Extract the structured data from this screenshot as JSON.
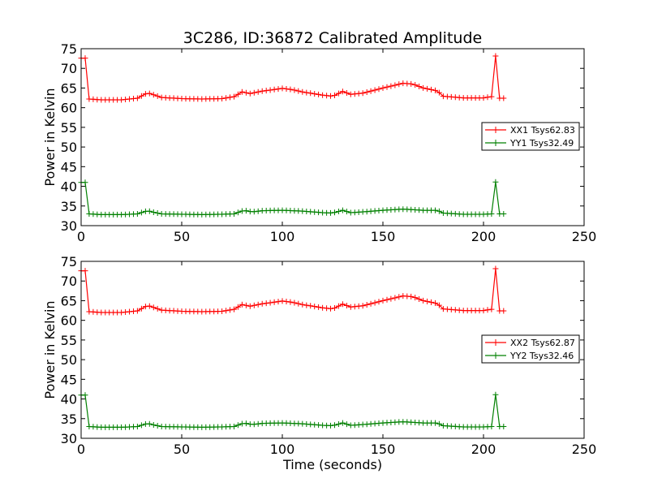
{
  "chart_data": {
    "title": "3C286, ID:36872 Calibrated Amplitude",
    "xlabel": "Time (seconds)",
    "ylabel": "Power in Kelvin",
    "xlim": [
      0,
      250
    ],
    "ylim": [
      30,
      75
    ],
    "x_ticks": [
      0,
      50,
      100,
      150,
      200,
      250
    ],
    "y_ticks": [
      30,
      35,
      40,
      45,
      50,
      55,
      60,
      65,
      70,
      75
    ],
    "legend_placement": "center-right",
    "panels": [
      {
        "type": "line",
        "series": [
          {
            "name": "XX1 Tsys62.83",
            "color": "#ff0000"
          },
          {
            "name": "YY1 Tsys32.49",
            "color": "#008000"
          }
        ]
      },
      {
        "type": "line",
        "series": [
          {
            "name": "XX2 Tsys62.87",
            "color": "#ff0000"
          },
          {
            "name": "YY2 Tsys32.46",
            "color": "#008000"
          }
        ]
      }
    ],
    "profiles": {
      "xx": [
        [
          0,
          72.6
        ],
        [
          3,
          72.6
        ],
        [
          4,
          62.2
        ],
        [
          10,
          62.0
        ],
        [
          20,
          62.0
        ],
        [
          28,
          62.4
        ],
        [
          33,
          63.8
        ],
        [
          36,
          63.3
        ],
        [
          40,
          62.6
        ],
        [
          50,
          62.3
        ],
        [
          60,
          62.2
        ],
        [
          70,
          62.3
        ],
        [
          76,
          62.8
        ],
        [
          80,
          64.0
        ],
        [
          84,
          63.6
        ],
        [
          90,
          64.2
        ],
        [
          100,
          64.9
        ],
        [
          105,
          64.6
        ],
        [
          110,
          64.0
        ],
        [
          120,
          63.2
        ],
        [
          125,
          62.9
        ],
        [
          130,
          64.1
        ],
        [
          134,
          63.4
        ],
        [
          140,
          63.7
        ],
        [
          150,
          65.0
        ],
        [
          160,
          66.2
        ],
        [
          165,
          66.0
        ],
        [
          170,
          65.0
        ],
        [
          177,
          64.3
        ],
        [
          180,
          62.9
        ],
        [
          190,
          62.5
        ],
        [
          200,
          62.5
        ],
        [
          204,
          62.8
        ],
        [
          205,
          73.3
        ],
        [
          207,
          73.0
        ],
        [
          208,
          62.4
        ],
        [
          210,
          62.4
        ]
      ],
      "yy": [
        [
          0,
          41.0
        ],
        [
          3,
          41.0
        ],
        [
          4,
          33.0
        ],
        [
          10,
          32.8
        ],
        [
          20,
          32.8
        ],
        [
          28,
          33.0
        ],
        [
          33,
          33.8
        ],
        [
          36,
          33.4
        ],
        [
          40,
          33.0
        ],
        [
          50,
          32.9
        ],
        [
          60,
          32.8
        ],
        [
          70,
          32.9
        ],
        [
          76,
          33.0
        ],
        [
          81,
          33.9
        ],
        [
          85,
          33.5
        ],
        [
          90,
          33.8
        ],
        [
          100,
          33.9
        ],
        [
          110,
          33.7
        ],
        [
          120,
          33.3
        ],
        [
          125,
          33.2
        ],
        [
          130,
          33.9
        ],
        [
          134,
          33.3
        ],
        [
          140,
          33.5
        ],
        [
          150,
          33.9
        ],
        [
          160,
          34.2
        ],
        [
          170,
          33.9
        ],
        [
          177,
          33.9
        ],
        [
          180,
          33.2
        ],
        [
          190,
          32.9
        ],
        [
          200,
          32.9
        ],
        [
          204,
          33.0
        ],
        [
          205,
          41.2
        ],
        [
          207,
          41.0
        ],
        [
          208,
          33.0
        ],
        [
          210,
          33.0
        ]
      ]
    }
  }
}
